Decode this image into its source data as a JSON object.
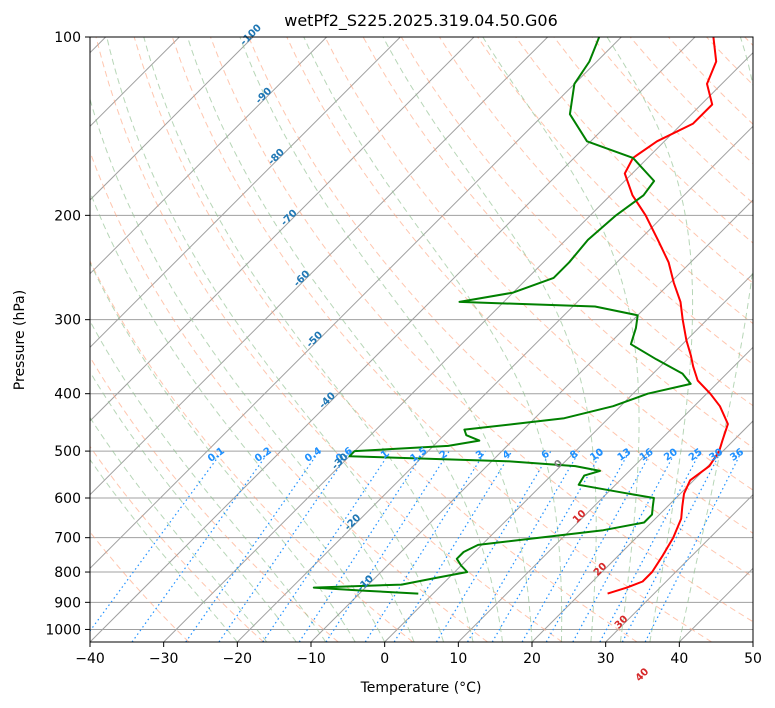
{
  "chart_data": {
    "type": "line",
    "title": "wetPf2_S225.2025.319.04.50.G06",
    "xlabel": "Temperature (°C)",
    "ylabel": "Pressure (hPa)",
    "xlim": [
      -40,
      50
    ],
    "ylim": [
      1050,
      100
    ],
    "y_log_scale": true,
    "skew": true,
    "grid": true,
    "x_ticks": [
      "−40",
      "−30",
      "−20",
      "−10",
      "0",
      "10",
      "20",
      "30",
      "40",
      "50"
    ],
    "y_ticks": [
      "100",
      "200",
      "300",
      "400",
      "500",
      "600",
      "700",
      "800",
      "900",
      "1000"
    ],
    "series": [
      {
        "role": "temperature",
        "color": "#ff0000",
        "points": [
          [
            870,
            23.7
          ],
          [
            850,
            25.5
          ],
          [
            830,
            26.8
          ],
          [
            800,
            26.8
          ],
          [
            750,
            26.0
          ],
          [
            700,
            25.0
          ],
          [
            650,
            23.5
          ],
          [
            620,
            22.0
          ],
          [
            590,
            20.5
          ],
          [
            560,
            19.5
          ],
          [
            530,
            20.2
          ],
          [
            500,
            19.5
          ],
          [
            480,
            18.5
          ],
          [
            450,
            17.0
          ],
          [
            420,
            13.5
          ],
          [
            400,
            10.5
          ],
          [
            380,
            7.0
          ],
          [
            360,
            4.5
          ],
          [
            345,
            2.7
          ],
          [
            325,
            0.0
          ],
          [
            300,
            -3.3
          ],
          [
            280,
            -6.0
          ],
          [
            260,
            -9.5
          ],
          [
            240,
            -13.0
          ],
          [
            220,
            -17.5
          ],
          [
            200,
            -22.5
          ],
          [
            185,
            -27.0
          ],
          [
            170,
            -31.0
          ],
          [
            160,
            -32.0
          ],
          [
            150,
            -31.0
          ],
          [
            140,
            -28.5
          ],
          [
            130,
            -28.5
          ],
          [
            120,
            -32.0
          ],
          [
            110,
            -33.8
          ],
          [
            100,
            -37.5
          ]
        ]
      },
      {
        "role": "dewpoint",
        "color": "#008000",
        "points": [
          [
            870,
            -2.0
          ],
          [
            860,
            -10.0
          ],
          [
            850,
            -17.0
          ],
          [
            840,
            -5.5
          ],
          [
            820,
            -2.0
          ],
          [
            800,
            1.7
          ],
          [
            780,
            0.0
          ],
          [
            760,
            -1.5
          ],
          [
            740,
            -1.5
          ],
          [
            720,
            -0.5
          ],
          [
            700,
            6.8
          ],
          [
            680,
            14.5
          ],
          [
            660,
            19.0
          ],
          [
            640,
            19.0
          ],
          [
            620,
            18.0
          ],
          [
            600,
            17.0
          ],
          [
            590,
            13.0
          ],
          [
            570,
            5.0
          ],
          [
            550,
            4.5
          ],
          [
            540,
            6.0
          ],
          [
            530,
            2.0
          ],
          [
            520,
            -8.0
          ],
          [
            510,
            -30.0
          ],
          [
            500,
            -30.0
          ],
          [
            490,
            -18.0
          ],
          [
            480,
            -14.5
          ],
          [
            470,
            -17.0
          ],
          [
            460,
            -18.0
          ],
          [
            450,
            -12.0
          ],
          [
            440,
            -6.0
          ],
          [
            420,
            -1.0
          ],
          [
            400,
            2.0
          ],
          [
            385,
            6.5
          ],
          [
            370,
            4.0
          ],
          [
            350,
            -1.5
          ],
          [
            330,
            -7.0
          ],
          [
            310,
            -8.5
          ],
          [
            295,
            -10.0
          ],
          [
            285,
            -17.0
          ],
          [
            280,
            -36.0
          ],
          [
            270,
            -30.0
          ],
          [
            255,
            -26.5
          ],
          [
            240,
            -26.5
          ],
          [
            220,
            -27.0
          ],
          [
            200,
            -26.5
          ],
          [
            185,
            -25.5
          ],
          [
            175,
            -26.0
          ],
          [
            160,
            -32.0
          ],
          [
            150,
            -40.5
          ],
          [
            135,
            -46.5
          ],
          [
            120,
            -50.0
          ],
          [
            110,
            -51.0
          ],
          [
            100,
            -53.0
          ]
        ]
      }
    ],
    "labels": {
      "isotherm_labels": [
        "-100",
        "-90",
        "-80",
        "-70",
        "-60",
        "-50",
        "-40",
        "-30",
        "-20",
        "-10",
        "0",
        "10",
        "20",
        "30",
        "40"
      ],
      "mixing_ratio_labels": [
        "0.1",
        "0.2",
        "0.4",
        "0.6",
        "1",
        "1.5",
        "2",
        "3",
        "4",
        "6",
        "8",
        "10",
        "13",
        "16",
        "20",
        "25",
        "30",
        "36"
      ]
    },
    "colors": {
      "isotherm": "#a0a0a0",
      "dry_adiabat": "#ffa07a",
      "moist_adiabat": "#90c090",
      "mixing_ratio": "#1e90ff",
      "cold_label": "#1f77b4",
      "warm_label": "#d62728",
      "zero_label": "#808080"
    }
  }
}
